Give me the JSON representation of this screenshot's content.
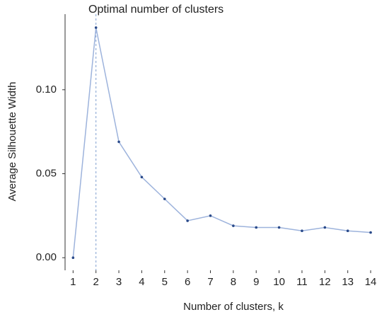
{
  "chart_data": {
    "type": "line",
    "title": "Optimal number of clusters",
    "x_label": "Number of clusters, k",
    "y_label": "Average Silhouette Width",
    "x": [
      1,
      2,
      3,
      4,
      5,
      6,
      7,
      8,
      9,
      10,
      11,
      12,
      13,
      14
    ],
    "series": [
      {
        "name": "silhouette",
        "color": "#9db3dc",
        "marker_color": "#2a4a8a",
        "values": [
          0,
          0.137,
          0.069,
          0.048,
          0.035,
          0.022,
          0.025,
          0.019,
          0.018,
          0.018,
          0.016,
          0.018,
          0.016,
          0.015
        ]
      }
    ],
    "optimal_k": 2,
    "xlim": [
      0.65,
      14.4
    ],
    "ylim": [
      -0.0075,
      0.145
    ],
    "xticks": [
      1,
      2,
      3,
      4,
      5,
      6,
      7,
      8,
      9,
      10,
      11,
      12,
      13,
      14
    ],
    "yticks": [
      {
        "value": 0,
        "label": "0.00"
      },
      {
        "value": 0.05,
        "label": "0.05"
      },
      {
        "value": 0.1,
        "label": "0.10"
      }
    ]
  }
}
